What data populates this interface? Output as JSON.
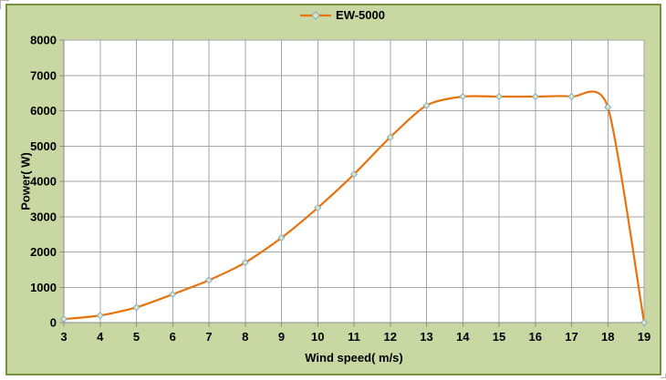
{
  "legend": {
    "label": "EW-5000"
  },
  "chart_data": {
    "type": "line",
    "title": "",
    "x": [
      3,
      4,
      5,
      6,
      7,
      8,
      9,
      10,
      11,
      12,
      13,
      14,
      15,
      16,
      17,
      18,
      19
    ],
    "series": [
      {
        "name": "EW-5000",
        "values": [
          100,
          200,
          430,
          800,
          1200,
          1700,
          2400,
          3250,
          4200,
          5250,
          6150,
          6400,
          6400,
          6400,
          6400,
          6100,
          0
        ]
      }
    ],
    "xlabel": "Wind speed( m/s)",
    "ylabel": "Power( W)",
    "xlim": [
      3,
      19
    ],
    "ylim": [
      0,
      8000
    ],
    "x_tick_step": 1,
    "y_tick_step": 1000,
    "grid": true,
    "line_smoothing": true,
    "legend_position": "top-center",
    "marker_shape": "diamond",
    "colors": {
      "chart_background": "#c9d7a2",
      "chart_border": "#75933d",
      "plot_background": "#ffffff",
      "gridline": "#a6a6a6",
      "axis_line": "#898989",
      "series_line": "#e8730c",
      "marker_fill": "#dce6c0",
      "marker_stroke": "#84aec6",
      "text": "#000000"
    }
  }
}
